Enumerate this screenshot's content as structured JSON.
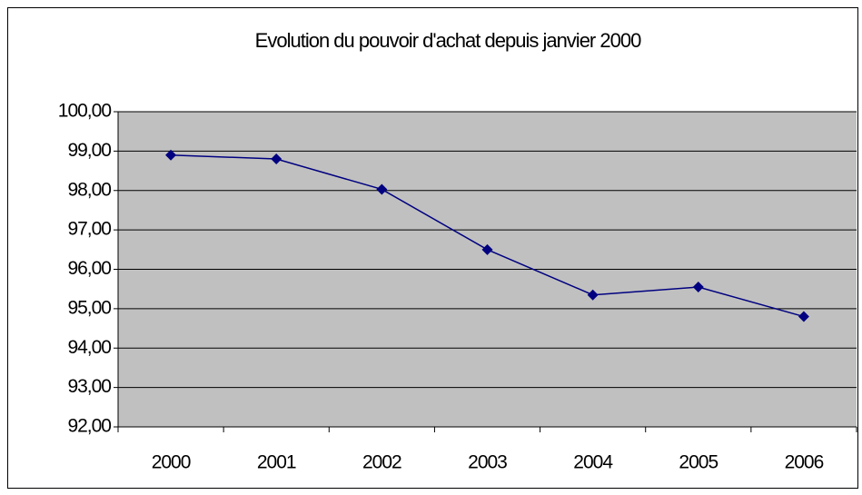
{
  "chart_data": {
    "type": "line",
    "title": "Evolution du pouvoir d'achat depuis janvier 2000",
    "categories": [
      "2000",
      "2001",
      "2002",
      "2003",
      "2004",
      "2005",
      "2006"
    ],
    "series": [
      {
        "name": "pouvoir d'achat",
        "color": "#000080",
        "values": [
          98.9,
          98.8,
          98.03,
          96.5,
          95.35,
          95.55,
          94.8
        ]
      }
    ],
    "ylim": [
      92,
      100
    ],
    "yticks": [
      {
        "value": 92,
        "label": "92,00"
      },
      {
        "value": 93,
        "label": "93,00"
      },
      {
        "value": 94,
        "label": "94,00"
      },
      {
        "value": 95,
        "label": "95,00"
      },
      {
        "value": 96,
        "label": "96,00"
      },
      {
        "value": 97,
        "label": "97,00"
      },
      {
        "value": 98,
        "label": "98,00"
      },
      {
        "value": 99,
        "label": "99,00"
      },
      {
        "value": 100,
        "label": "100,00"
      }
    ],
    "grid": true,
    "background": "#c0c0c0"
  }
}
